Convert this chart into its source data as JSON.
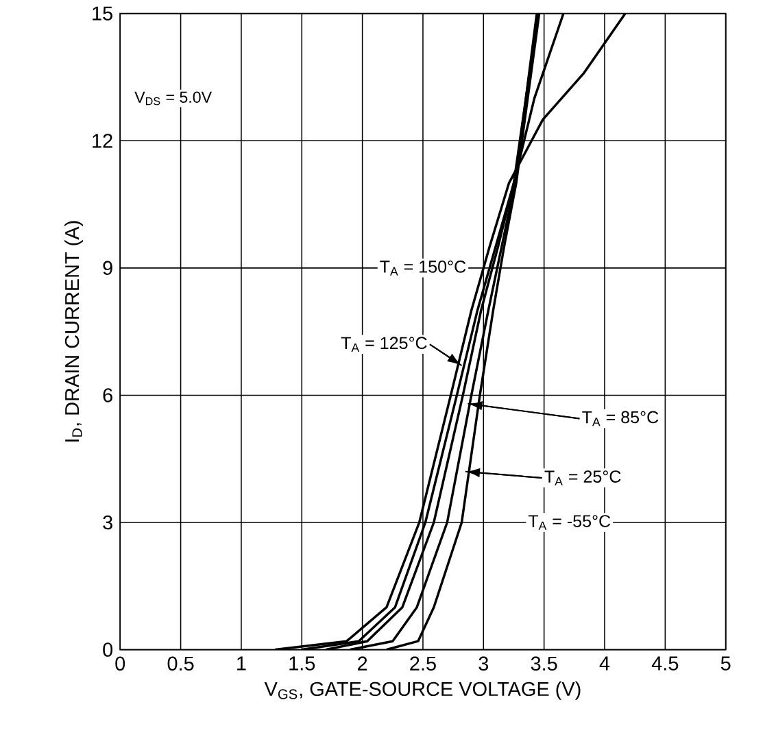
{
  "chart_data": {
    "type": "line",
    "xlabel": "V$_{GS}$, GATE-SOURCE VOLTAGE (V)",
    "ylabel": "I$_{D}$, DRAIN CURRENT (A)",
    "xlim": [
      0,
      5
    ],
    "ylim": [
      0,
      15
    ],
    "xticks": [
      0,
      0.5,
      1,
      1.5,
      2,
      2.5,
      3,
      3.5,
      4,
      4.5,
      5
    ],
    "yticks": [
      0,
      3,
      6,
      9,
      12,
      15
    ],
    "grid": true,
    "series": [
      {
        "color": "#000000",
        "x": [
          1.28,
          1.87,
          2.2,
          2.47,
          2.73,
          2.9,
          3.05,
          3.21,
          3.49,
          3.83,
          4.17
        ],
        "values": [
          0,
          0.2,
          1,
          3,
          6,
          8,
          9.5,
          11,
          12.5,
          13.6,
          15
        ]
      },
      {
        "color": "#000000",
        "x": [
          1.5,
          1.97,
          2.27,
          2.52,
          2.78,
          2.95,
          3.1,
          3.25,
          3.42,
          3.66
        ],
        "values": [
          0,
          0.2,
          1,
          3,
          6,
          8,
          9.5,
          11,
          13,
          15
        ]
      },
      {
        "color": "#000000",
        "x": [
          1.7,
          2.04,
          2.33,
          2.59,
          2.83,
          2.98,
          3.12,
          3.25,
          3.45
        ],
        "values": [
          0,
          0.2,
          1,
          3,
          6,
          8,
          9.5,
          11,
          15
        ]
      },
      {
        "color": "#000000",
        "x": [
          1.9,
          2.25,
          2.45,
          2.7,
          2.9,
          3.04,
          3.15,
          3.26,
          3.44
        ],
        "values": [
          0,
          0.2,
          1,
          3,
          6,
          8,
          9.5,
          11,
          15
        ]
      },
      {
        "color": "#000000",
        "x": [
          2.2,
          2.46,
          2.59,
          2.82,
          2.97,
          3.08,
          3.17,
          3.27,
          3.46
        ],
        "values": [
          0,
          0.2,
          1,
          3,
          6,
          8,
          9.5,
          11,
          15
        ]
      }
    ],
    "annotations": [
      "V$_{DS}$ = 5.0V",
      {
        "text": "T$_{A}$ = 150°C",
        "x": 2.98,
        "y": 9
      },
      {
        "text": "T$_{A}$ = 125°C",
        "x": 2.82,
        "y": 6.7
      },
      {
        "text": "T$_{A}$ = 85°C",
        "x": 2.87,
        "y": 5.8
      },
      "T$_{A}$ = 25°C",
      "T$_{A}$ = -55°C"
    ]
  }
}
